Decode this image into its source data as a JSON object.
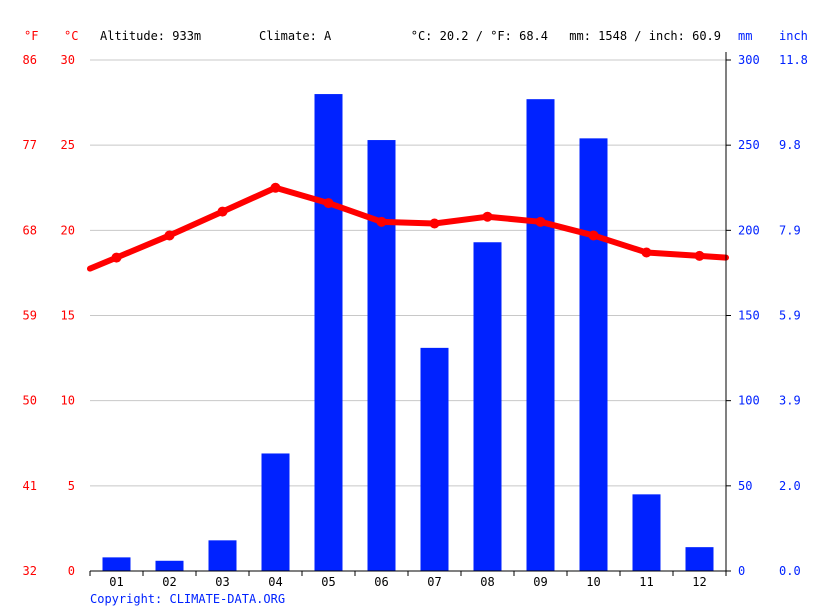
{
  "header": {
    "unit_f": "°F",
    "unit_c": "°C",
    "altitude": "Altitude: 933m",
    "climate": "Climate: A",
    "temp_avg": "°C: 20.2 / °F: 68.4",
    "precip_avg": "mm: 1548 / inch: 60.9",
    "unit_mm": "mm",
    "unit_inch": "inch"
  },
  "footer": {
    "copyright": "Copyright: CLIMATE-DATA.ORG"
  },
  "colors": {
    "temp": "#ff0000",
    "precip": "#0022ff",
    "label_red": "#ff0000",
    "label_blue": "#0022ff",
    "grid": "#c8c8c8",
    "axis": "#000000"
  },
  "chart_data": {
    "type": "bar",
    "categories": [
      "01",
      "02",
      "03",
      "04",
      "05",
      "06",
      "07",
      "08",
      "09",
      "10",
      "11",
      "12"
    ],
    "series": [
      {
        "kind": "bar",
        "axis": "right",
        "values": [
          8,
          6,
          18,
          69,
          280,
          253,
          131,
          193,
          277,
          254,
          45,
          14
        ]
      },
      {
        "kind": "line",
        "axis": "left",
        "values": [
          18.4,
          19.7,
          21.1,
          22.5,
          21.6,
          20.5,
          20.4,
          20.8,
          20.5,
          19.7,
          18.7,
          18.5
        ]
      }
    ],
    "left_c_ticks": [
      "0",
      "5",
      "10",
      "15",
      "20",
      "25",
      "30"
    ],
    "left_f_ticks": [
      "32",
      "41",
      "50",
      "59",
      "68",
      "77",
      "86"
    ],
    "right_mm_ticks": [
      "0",
      "50",
      "100",
      "150",
      "200",
      "250",
      "300"
    ],
    "right_inch_ticks": [
      "0.0",
      "2.0",
      "3.9",
      "5.9",
      "7.9",
      "9.8",
      "11.8"
    ],
    "temp_range_c": [
      0,
      30
    ],
    "precip_range_mm": [
      0,
      300
    ],
    "grid": true
  }
}
